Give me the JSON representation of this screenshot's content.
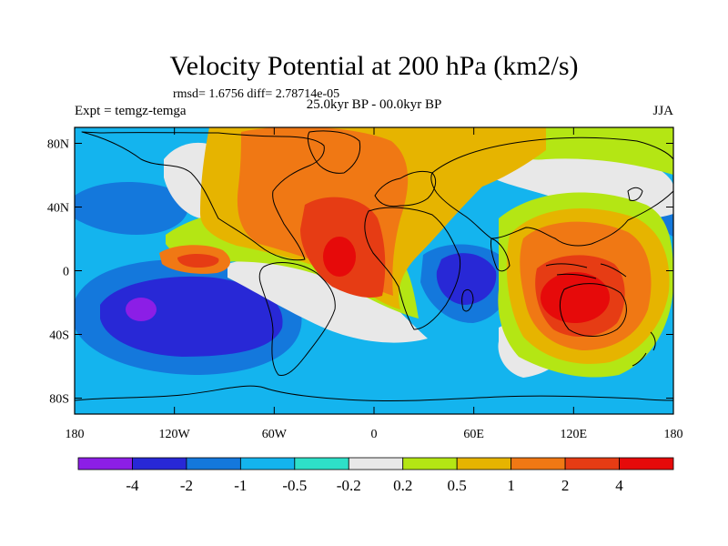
{
  "title": "Velocity Potential at 200 hPa (km2/s)",
  "stats": "rmsd= 1.6756 diff= 2.78714e-05",
  "experiment": "Expt = temgz-temga",
  "period": "25.0kyr BP - 00.0kyr BP",
  "season": "JJA",
  "map": {
    "projection": "cylindrical-equidistant",
    "lon_range": [
      -180,
      180
    ],
    "lat_range": [
      -90,
      90
    ],
    "lat_ticks": [
      {
        "value": 80,
        "label": "80N"
      },
      {
        "value": 40,
        "label": "40N"
      },
      {
        "value": 0,
        "label": "0"
      },
      {
        "value": -40,
        "label": "40S"
      },
      {
        "value": -80,
        "label": "80S"
      }
    ],
    "lon_ticks": [
      {
        "value": -180,
        "label": "180"
      },
      {
        "value": -120,
        "label": "120W"
      },
      {
        "value": -60,
        "label": "60W"
      },
      {
        "value": 0,
        "label": "0"
      },
      {
        "value": 60,
        "label": "60E"
      },
      {
        "value": 120,
        "label": "120E"
      },
      {
        "value": 180,
        "label": "180"
      }
    ]
  },
  "colorbar": {
    "levels": [
      -4,
      -2,
      -1,
      -0.5,
      -0.2,
      0.2,
      0.5,
      1,
      2,
      4
    ],
    "labels": [
      "-4",
      "-2",
      "-1",
      "-0.5",
      "-0.2",
      "0.2",
      "0.5",
      "1",
      "2",
      "4"
    ],
    "colors": [
      "#8c1ee6",
      "#2828d6",
      "#1478dc",
      "#14b4ee",
      "#2ee0c8",
      "#e8e8e8",
      "#b4e614",
      "#e6b400",
      "#f07814",
      "#e63c14",
      "#e60a0a"
    ]
  },
  "features": [
    {
      "name": "positive-center-atlantic",
      "lon": -25,
      "lat": 12,
      "value": 4
    },
    {
      "name": "positive-center-maritime-continent",
      "lon": 120,
      "lat": -15,
      "value": 4
    },
    {
      "name": "positive-band-north-america-north-atlantic",
      "lon": -40,
      "lat": 55,
      "value": 2
    },
    {
      "name": "negative-center-south-pacific",
      "lon": -135,
      "lat": -25,
      "value": -4
    },
    {
      "name": "negative-center-indian-ocean",
      "lon": 55,
      "lat": -2,
      "value": -2
    },
    {
      "name": "negative-lobe-east-pacific",
      "lon": -150,
      "lat": 25,
      "value": -1
    }
  ]
}
